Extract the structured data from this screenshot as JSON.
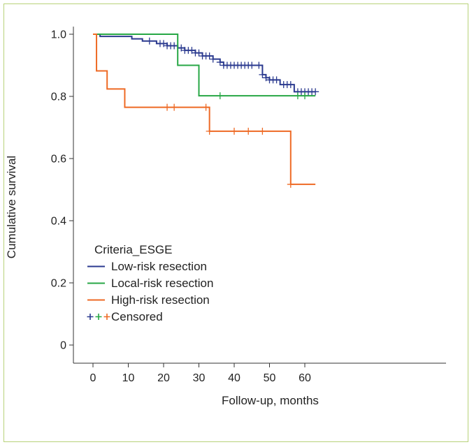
{
  "chart_data": {
    "type": "line",
    "subtype": "kaplan-meier",
    "title": "",
    "xlabel": "Follow-up, months",
    "ylabel": "Cumulative survival",
    "xlim": [
      -5,
      63
    ],
    "ylim": [
      -0.05,
      1.02
    ],
    "x_ticks": [
      0,
      10,
      20,
      30,
      40,
      50,
      60
    ],
    "y_ticks": [
      0,
      0.2,
      0.4,
      0.6,
      0.8,
      1.0
    ],
    "x_tick_labels": [
      "0",
      "10",
      "20",
      "30",
      "40",
      "50",
      "60"
    ],
    "y_tick_labels": [
      "0",
      "0.2",
      "0.4",
      "0.6",
      "0.8",
      "1.0"
    ],
    "grid": false,
    "legend": {
      "title": "Criteria_ESGE",
      "placement": "bottom-left",
      "censored_label": "Censored"
    },
    "series": [
      {
        "name": "Low-risk resection",
        "color": "#2b3a8f",
        "steps": [
          [
            0,
            1.0
          ],
          [
            2,
            0.993
          ],
          [
            11,
            0.985
          ],
          [
            14,
            0.978
          ],
          [
            18,
            0.97
          ],
          [
            21,
            0.963
          ],
          [
            24,
            0.956
          ],
          [
            26,
            0.948
          ],
          [
            29,
            0.94
          ],
          [
            31,
            0.93
          ],
          [
            34,
            0.92
          ],
          [
            36,
            0.91
          ],
          [
            37,
            0.9
          ],
          [
            48,
            0.87
          ],
          [
            49,
            0.86
          ],
          [
            50,
            0.853
          ],
          [
            53,
            0.838
          ],
          [
            57,
            0.815
          ],
          [
            63,
            0.815
          ]
        ],
        "censored": [
          16,
          19,
          20,
          21,
          22,
          23,
          25,
          26,
          27,
          28,
          29,
          30,
          31,
          32,
          33,
          34,
          36,
          37,
          38,
          39,
          40,
          41,
          42,
          43,
          44,
          45,
          47,
          48,
          49,
          50,
          51,
          52,
          54,
          55,
          56,
          58,
          59,
          60,
          61,
          62,
          63
        ]
      },
      {
        "name": "Local-risk resection",
        "color": "#27a745",
        "steps": [
          [
            0,
            1.0
          ],
          [
            24,
            0.9
          ],
          [
            30,
            0.802
          ],
          [
            63,
            0.802
          ]
        ],
        "censored": [
          36,
          58,
          60
        ]
      },
      {
        "name": "High-risk resection",
        "color": "#ee6a25",
        "steps": [
          [
            0,
            1.0
          ],
          [
            1,
            0.882
          ],
          [
            4,
            0.824
          ],
          [
            9,
            0.765
          ],
          [
            33,
            0.688
          ],
          [
            56,
            0.517
          ],
          [
            63,
            0.517
          ]
        ],
        "censored": [
          21,
          23,
          32,
          33,
          40,
          44,
          48,
          56
        ]
      }
    ]
  }
}
